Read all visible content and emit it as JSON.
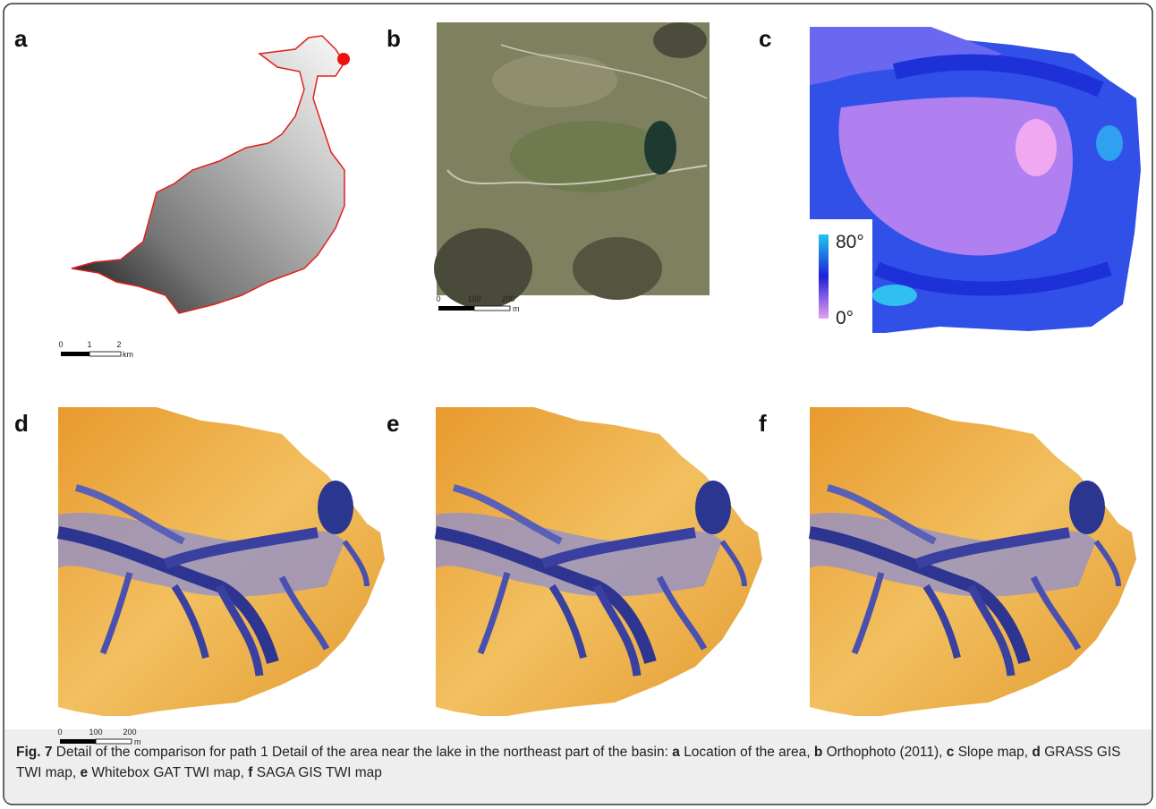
{
  "panels": [
    {
      "label": "a",
      "scale_bar": {
        "ticks": [
          "0",
          "1",
          "2"
        ],
        "unit": "km"
      }
    },
    {
      "label": "b",
      "scale_bar": {
        "ticks": [
          "0",
          "100",
          "200"
        ],
        "unit": "m"
      }
    },
    {
      "label": "c",
      "legend": {
        "max": "80°",
        "min": "0°"
      }
    },
    {
      "label": "d",
      "scale_bar": {
        "ticks": [
          "0",
          "100",
          "200"
        ],
        "unit": "m"
      }
    },
    {
      "label": "e"
    },
    {
      "label": "f"
    }
  ],
  "caption": {
    "label": "Fig. 7",
    "text": "Detail of the comparison for path 1 Detail of the area near the lake in the northeast part of the basin:",
    "items": [
      {
        "key": "a",
        "text": "Location of the area,"
      },
      {
        "key": "b",
        "text": "Orthophoto (2011),"
      },
      {
        "key": "c",
        "text": "Slope map,"
      },
      {
        "key": "d",
        "text": "GRASS GIS TWI map,"
      },
      {
        "key": "e",
        "text": "Whitebox GAT TWI map,"
      },
      {
        "key": "f",
        "text": "SAGA GIS TWI map"
      }
    ]
  }
}
